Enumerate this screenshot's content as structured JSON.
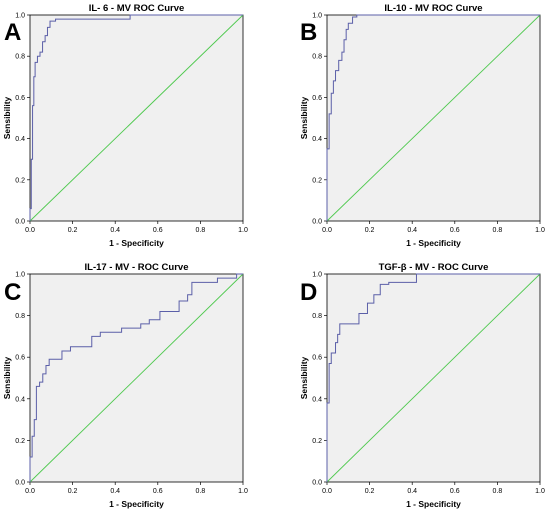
{
  "chart_data": [
    {
      "type": "line",
      "panel_letter": "A",
      "title": "IL- 6 - MV ROC Curve",
      "xlabel": "1 - Specificity",
      "ylabel": "Sensibility",
      "xlim": [
        0,
        1
      ],
      "ylim": [
        0,
        1
      ],
      "x_ticks": [
        "0.0",
        "0.2",
        "0.4",
        "0.6",
        "0.8",
        "1.0"
      ],
      "y_ticks": [
        "0.0",
        "0.2",
        "0.4",
        "0.6",
        "0.8",
        "1.0"
      ],
      "grid": false,
      "series": [
        {
          "role": "roc",
          "color": "#5b5fa8",
          "points": [
            [
              0,
              0
            ],
            [
              0,
              0.06
            ],
            [
              0.006,
              0.06
            ],
            [
              0.006,
              0.3
            ],
            [
              0.012,
              0.3
            ],
            [
              0.012,
              0.56
            ],
            [
              0.018,
              0.56
            ],
            [
              0.018,
              0.7
            ],
            [
              0.024,
              0.7
            ],
            [
              0.024,
              0.77
            ],
            [
              0.035,
              0.77
            ],
            [
              0.035,
              0.8
            ],
            [
              0.047,
              0.8
            ],
            [
              0.047,
              0.82
            ],
            [
              0.059,
              0.82
            ],
            [
              0.059,
              0.87
            ],
            [
              0.071,
              0.87
            ],
            [
              0.071,
              0.9
            ],
            [
              0.082,
              0.9
            ],
            [
              0.082,
              0.94
            ],
            [
              0.094,
              0.94
            ],
            [
              0.094,
              0.97
            ],
            [
              0.12,
              0.97
            ],
            [
              0.12,
              0.98
            ],
            [
              0.47,
              0.98
            ],
            [
              0.47,
              1.0
            ],
            [
              1.0,
              1.0
            ]
          ]
        },
        {
          "role": "reference",
          "color": "#4fc94f",
          "points": [
            [
              0,
              0
            ],
            [
              1,
              1
            ]
          ]
        }
      ]
    },
    {
      "type": "line",
      "panel_letter": "B",
      "title": "IL-10 - MV ROC Curve",
      "xlabel": "1 - Specificity",
      "ylabel": "Sensibility",
      "xlim": [
        0,
        1
      ],
      "ylim": [
        0,
        1
      ],
      "x_ticks": [
        "0.0",
        "0.2",
        "0.4",
        "0.6",
        "0.8",
        "1.0"
      ],
      "y_ticks": [
        "0.0",
        "0.2",
        "0.4",
        "0.6",
        "0.8",
        "1.0"
      ],
      "grid": false,
      "series": [
        {
          "role": "roc",
          "color": "#5b5fa8",
          "points": [
            [
              0,
              0
            ],
            [
              0,
              0.35
            ],
            [
              0.01,
              0.35
            ],
            [
              0.01,
              0.52
            ],
            [
              0.02,
              0.52
            ],
            [
              0.02,
              0.62
            ],
            [
              0.03,
              0.62
            ],
            [
              0.03,
              0.68
            ],
            [
              0.04,
              0.68
            ],
            [
              0.04,
              0.73
            ],
            [
              0.055,
              0.73
            ],
            [
              0.055,
              0.78
            ],
            [
              0.07,
              0.78
            ],
            [
              0.07,
              0.82
            ],
            [
              0.08,
              0.82
            ],
            [
              0.08,
              0.88
            ],
            [
              0.09,
              0.88
            ],
            [
              0.09,
              0.93
            ],
            [
              0.1,
              0.93
            ],
            [
              0.1,
              0.96
            ],
            [
              0.12,
              0.96
            ],
            [
              0.12,
              0.99
            ],
            [
              0.14,
              0.99
            ],
            [
              0.14,
              1.0
            ],
            [
              1.0,
              1.0
            ]
          ]
        },
        {
          "role": "reference",
          "color": "#4fc94f",
          "points": [
            [
              0,
              0
            ],
            [
              1,
              1
            ]
          ]
        }
      ]
    },
    {
      "type": "line",
      "panel_letter": "C",
      "title": "IL-17 - MV - ROC Curve",
      "xlabel": "1 - Specificity",
      "ylabel": "Sensibility",
      "xlim": [
        0,
        1
      ],
      "ylim": [
        0,
        1
      ],
      "x_ticks": [
        "0.0",
        "0.2",
        "0.4",
        "0.6",
        "0.8",
        "1.0"
      ],
      "y_ticks": [
        "0.0",
        "0.2",
        "0.4",
        "0.6",
        "0.8",
        "1.0"
      ],
      "grid": false,
      "series": [
        {
          "role": "roc",
          "color": "#5b5fa8",
          "points": [
            [
              0,
              0
            ],
            [
              0,
              0.12
            ],
            [
              0.01,
              0.12
            ],
            [
              0.01,
              0.22
            ],
            [
              0.02,
              0.22
            ],
            [
              0.02,
              0.3
            ],
            [
              0.03,
              0.3
            ],
            [
              0.03,
              0.46
            ],
            [
              0.045,
              0.46
            ],
            [
              0.045,
              0.48
            ],
            [
              0.06,
              0.48
            ],
            [
              0.06,
              0.52
            ],
            [
              0.075,
              0.52
            ],
            [
              0.075,
              0.56
            ],
            [
              0.09,
              0.56
            ],
            [
              0.09,
              0.59
            ],
            [
              0.15,
              0.59
            ],
            [
              0.15,
              0.63
            ],
            [
              0.19,
              0.63
            ],
            [
              0.19,
              0.65
            ],
            [
              0.29,
              0.65
            ],
            [
              0.29,
              0.7
            ],
            [
              0.33,
              0.7
            ],
            [
              0.33,
              0.72
            ],
            [
              0.43,
              0.72
            ],
            [
              0.43,
              0.74
            ],
            [
              0.52,
              0.74
            ],
            [
              0.52,
              0.76
            ],
            [
              0.56,
              0.76
            ],
            [
              0.56,
              0.78
            ],
            [
              0.61,
              0.78
            ],
            [
              0.61,
              0.82
            ],
            [
              0.7,
              0.82
            ],
            [
              0.7,
              0.87
            ],
            [
              0.74,
              0.87
            ],
            [
              0.74,
              0.9
            ],
            [
              0.76,
              0.9
            ],
            [
              0.76,
              0.96
            ],
            [
              0.88,
              0.96
            ],
            [
              0.88,
              0.98
            ],
            [
              0.97,
              0.98
            ],
            [
              0.97,
              1.0
            ],
            [
              1.0,
              1.0
            ]
          ]
        },
        {
          "role": "reference",
          "color": "#4fc94f",
          "points": [
            [
              0,
              0
            ],
            [
              1,
              1
            ]
          ]
        }
      ]
    },
    {
      "type": "line",
      "panel_letter": "D",
      "title": "TGF-β - MV - ROC Curve",
      "xlabel": "1 - Specificity",
      "ylabel": "Sensibility",
      "xlim": [
        0,
        1
      ],
      "ylim": [
        0,
        1
      ],
      "x_ticks": [
        "0.0",
        "0.2",
        "0.4",
        "0.6",
        "0.8",
        "1.0"
      ],
      "y_ticks": [
        "0.0",
        "0.2",
        "0.4",
        "0.6",
        "0.8",
        "1.0"
      ],
      "grid": false,
      "series": [
        {
          "role": "roc",
          "color": "#5b5fa8",
          "points": [
            [
              0,
              0
            ],
            [
              0,
              0.38
            ],
            [
              0.01,
              0.38
            ],
            [
              0.01,
              0.57
            ],
            [
              0.02,
              0.57
            ],
            [
              0.02,
              0.62
            ],
            [
              0.04,
              0.62
            ],
            [
              0.04,
              0.67
            ],
            [
              0.05,
              0.67
            ],
            [
              0.05,
              0.71
            ],
            [
              0.06,
              0.71
            ],
            [
              0.06,
              0.76
            ],
            [
              0.15,
              0.76
            ],
            [
              0.15,
              0.81
            ],
            [
              0.19,
              0.81
            ],
            [
              0.19,
              0.86
            ],
            [
              0.22,
              0.86
            ],
            [
              0.22,
              0.9
            ],
            [
              0.25,
              0.9
            ],
            [
              0.25,
              0.95
            ],
            [
              0.29,
              0.95
            ],
            [
              0.29,
              0.96
            ],
            [
              0.42,
              0.96
            ],
            [
              0.42,
              1.0
            ],
            [
              1.0,
              1.0
            ]
          ]
        },
        {
          "role": "reference",
          "color": "#4fc94f",
          "points": [
            [
              0,
              0
            ],
            [
              1,
              1
            ]
          ]
        }
      ]
    }
  ]
}
